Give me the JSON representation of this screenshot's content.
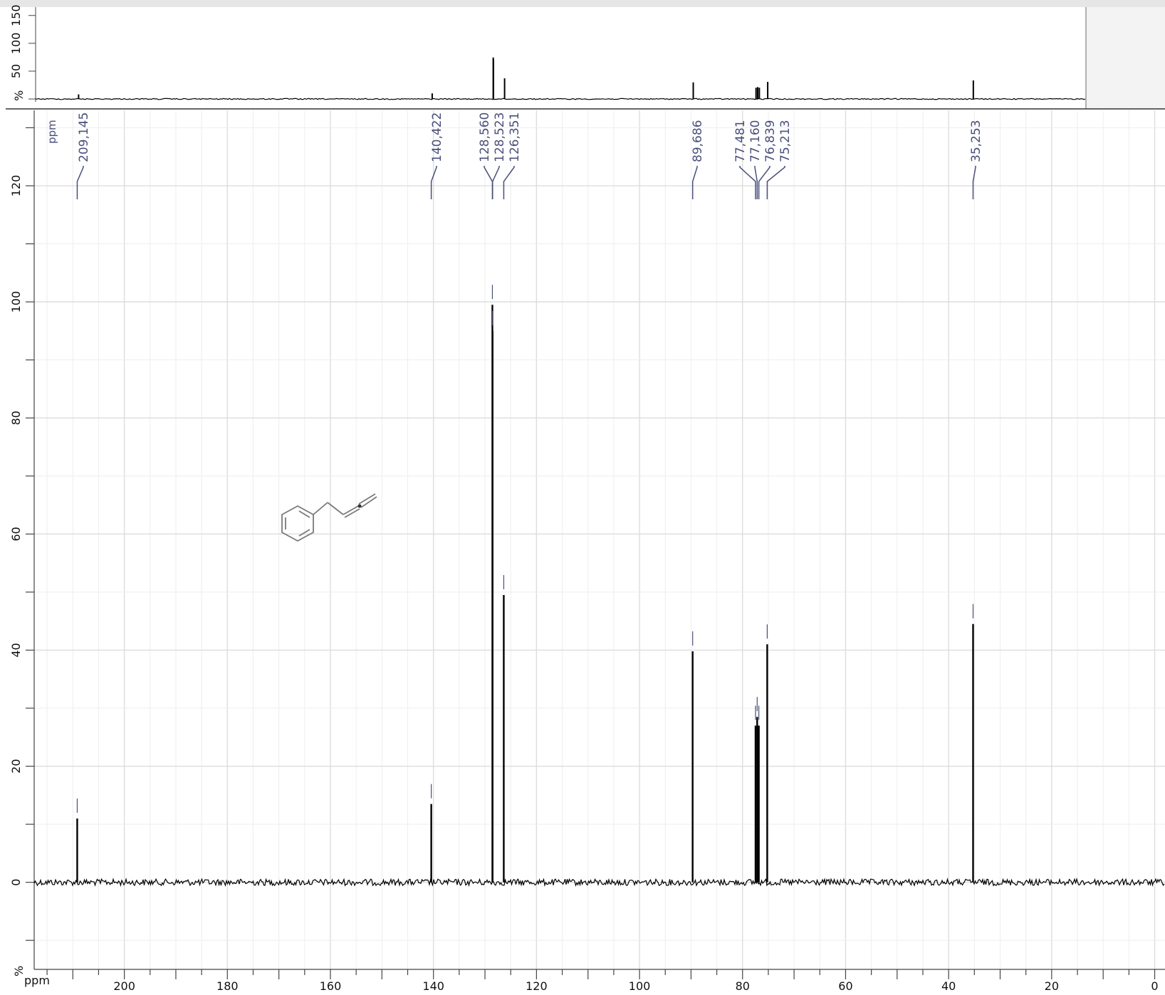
{
  "chart_data": {
    "type": "line",
    "title": "",
    "xlabel": "ppm",
    "ylabel": "%",
    "x_reversed": true,
    "xlim": [
      217.5,
      -2
    ],
    "ylim": [
      -15,
      133
    ],
    "x_ticks": [
      200,
      180,
      160,
      140,
      120,
      100,
      80,
      60,
      40,
      20,
      0
    ],
    "y_ticks": [
      -10,
      0,
      20,
      40,
      60,
      80,
      100,
      120
    ],
    "y_tick_labels": [
      "",
      "0",
      "20",
      "40",
      "60",
      "80",
      "100",
      "120"
    ],
    "grid": true,
    "peak_labels_unit": "ppm",
    "peak_labels": [
      "209,145",
      "140,422",
      "128,560",
      "128,523",
      "126,351",
      "89,686",
      "77,481",
      "77,160",
      "76,839",
      "75,213",
      "35,253"
    ],
    "peaks": [
      {
        "x": 209.145,
        "y": 11
      },
      {
        "x": 140.422,
        "y": 13.5
      },
      {
        "x": 128.56,
        "y": 99.5
      },
      {
        "x": 128.523,
        "y": 95
      },
      {
        "x": 126.351,
        "y": 49.5
      },
      {
        "x": 89.686,
        "y": 39.8
      },
      {
        "x": 77.481,
        "y": 27
      },
      {
        "x": 77.16,
        "y": 28.5
      },
      {
        "x": 76.839,
        "y": 27
      },
      {
        "x": 75.213,
        "y": 41
      },
      {
        "x": 35.253,
        "y": 44.5
      }
    ],
    "overview": {
      "ylabel": "%",
      "y_ticks": [
        0,
        50,
        100,
        150
      ],
      "y_tick_labels": [
        "",
        "50",
        "100",
        "150"
      ],
      "ylim": [
        -5,
        165
      ]
    }
  },
  "colors": {
    "spectrum": "#000000",
    "peak_label": "#4a4f7a",
    "grid_major": "#dddddd",
    "grid_minor": "#eeeeee",
    "frame": "#555555"
  },
  "icons": {
    "structure": "molecule-structure-icon"
  }
}
